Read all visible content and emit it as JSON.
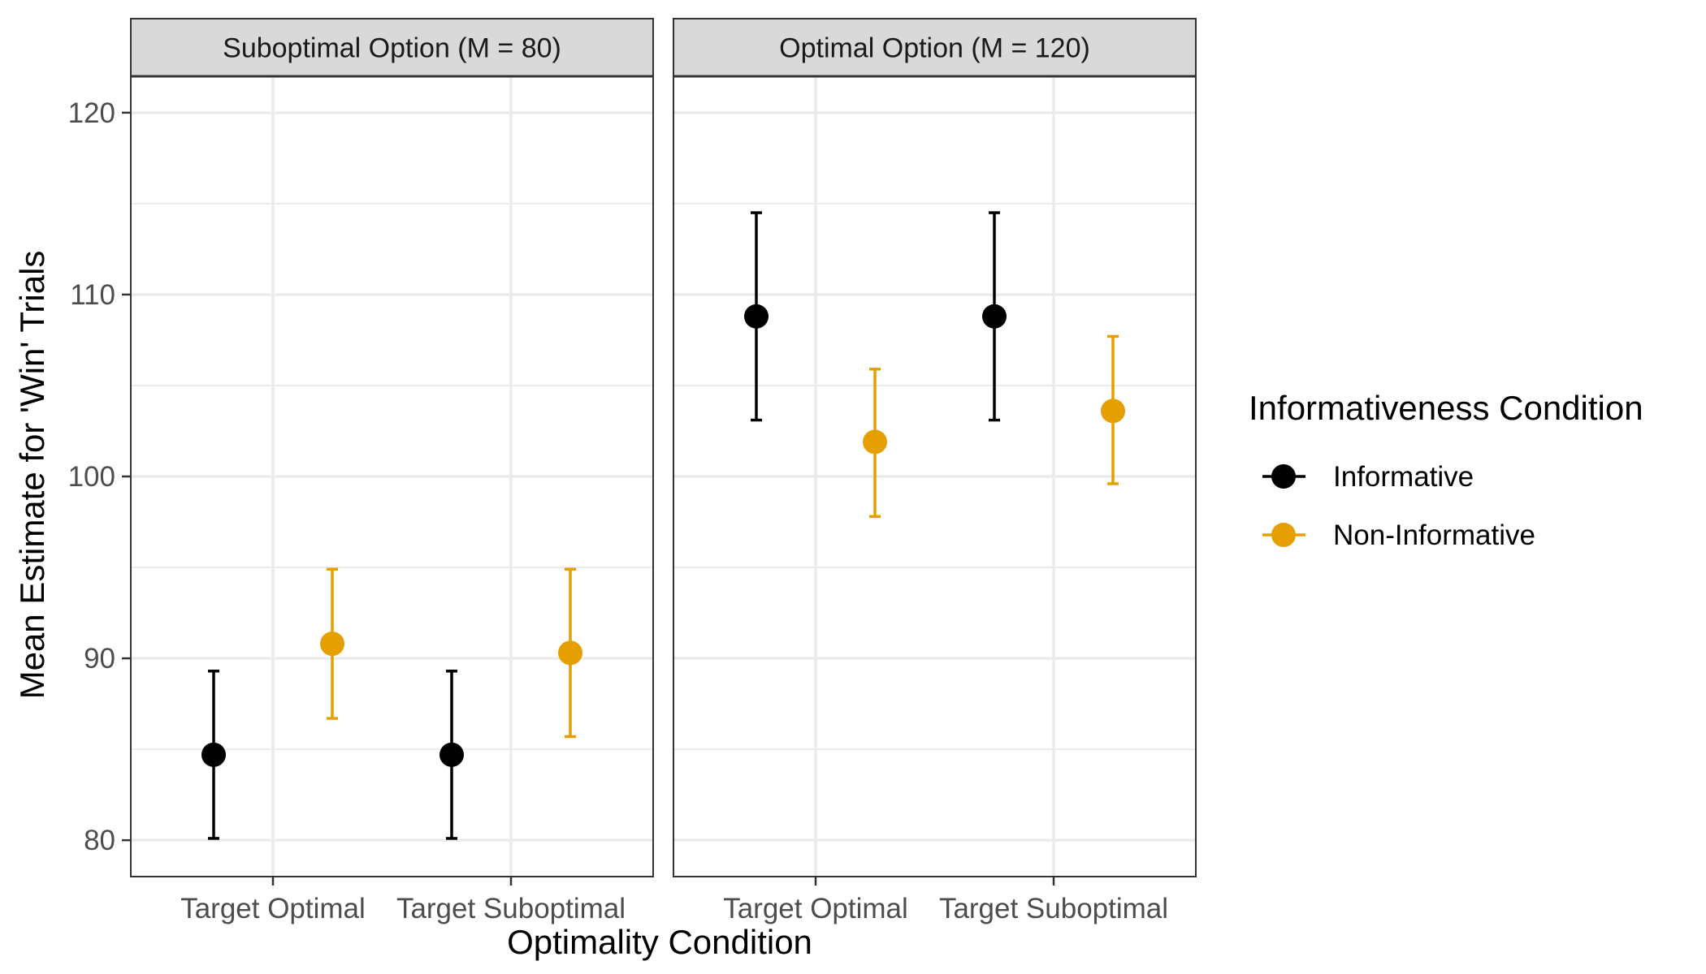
{
  "chart_data": {
    "type": "scatter",
    "subtype": "point-range (mean with error bars), faceted",
    "xlabel": "Optimality Condition",
    "ylabel": "Mean Estimate for 'Win' Trials",
    "categories": [
      "Target Optimal",
      "Target Suboptimal"
    ],
    "y_ticks": [
      80,
      90,
      100,
      110,
      120
    ],
    "ylim": [
      78,
      122
    ],
    "grid": true,
    "legend": {
      "title": "Informativeness Condition",
      "position": "right",
      "entries": [
        "Informative",
        "Non-Informative"
      ]
    },
    "panels": [
      {
        "title": "Suboptimal Option (M = 80)",
        "series": [
          {
            "name": "Informative",
            "color": "#000000",
            "points": [
              {
                "x": "Target Optimal",
                "y": 84.7,
                "ymin": 80.1,
                "ymax": 89.3
              },
              {
                "x": "Target Suboptimal",
                "y": 84.7,
                "ymin": 80.1,
                "ymax": 89.3
              }
            ]
          },
          {
            "name": "Non-Informative",
            "color": "#E69F00",
            "points": [
              {
                "x": "Target Optimal",
                "y": 90.8,
                "ymin": 86.7,
                "ymax": 94.9
              },
              {
                "x": "Target Suboptimal",
                "y": 90.3,
                "ymin": 85.7,
                "ymax": 94.9
              }
            ]
          }
        ]
      },
      {
        "title": "Optimal Option (M = 120)",
        "series": [
          {
            "name": "Informative",
            "color": "#000000",
            "points": [
              {
                "x": "Target Optimal",
                "y": 108.8,
                "ymin": 103.1,
                "ymax": 114.5
              },
              {
                "x": "Target Suboptimal",
                "y": 108.8,
                "ymin": 103.1,
                "ymax": 114.5
              }
            ]
          },
          {
            "name": "Non-Informative",
            "color": "#E69F00",
            "points": [
              {
                "x": "Target Optimal",
                "y": 101.9,
                "ymin": 97.8,
                "ymax": 105.9
              },
              {
                "x": "Target Suboptimal",
                "y": 103.6,
                "ymin": 99.6,
                "ymax": 107.7
              }
            ]
          }
        ]
      }
    ]
  }
}
